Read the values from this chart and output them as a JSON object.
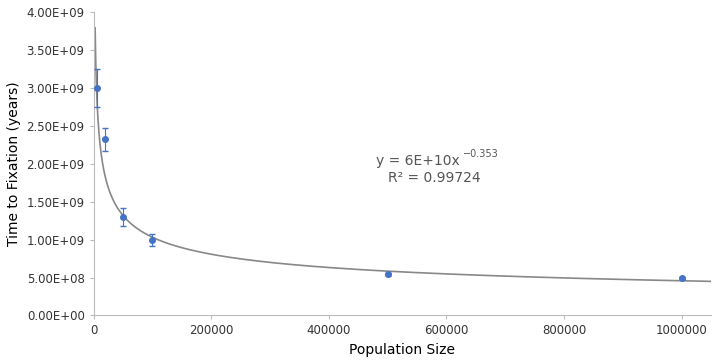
{
  "x_data": [
    5000,
    20000,
    50000,
    100000,
    500000,
    1000000
  ],
  "y_data": [
    3000000000.0,
    2320000000.0,
    1300000000.0,
    1000000000.0,
    540000000.0,
    490000000.0
  ],
  "y_err": [
    250000000.0,
    150000000.0,
    120000000.0,
    80000000.0,
    20000000.0,
    15000000.0
  ],
  "x_err": [
    0,
    0,
    0,
    0,
    0,
    0
  ],
  "fit_a": 60000000000.0,
  "fit_b": -0.353,
  "r2_text": "R² = 0.99724",
  "xlabel": "Population Size",
  "ylabel": "Time to Fixation (years)",
  "xlim": [
    0,
    1050000
  ],
  "ylim": [
    0,
    4000000000.0
  ],
  "yticks": [
    0,
    500000000.0,
    1000000000.0,
    1500000000.0,
    2000000000.0,
    2500000000.0,
    3000000000.0,
    3500000000.0,
    4000000000.0
  ],
  "xticks": [
    0,
    200000,
    400000,
    600000,
    800000,
    1000000
  ],
  "data_color": "#4472C4",
  "line_color": "#888888",
  "ann_x": 480000,
  "ann_y1": 1950000000.0,
  "ann_y2": 1720000000.0,
  "marker_size": 4,
  "line_width": 1.2,
  "background_color": "#ffffff",
  "spine_color": "#bbbbbb",
  "tick_label_size": 8.5,
  "axis_label_size": 10
}
